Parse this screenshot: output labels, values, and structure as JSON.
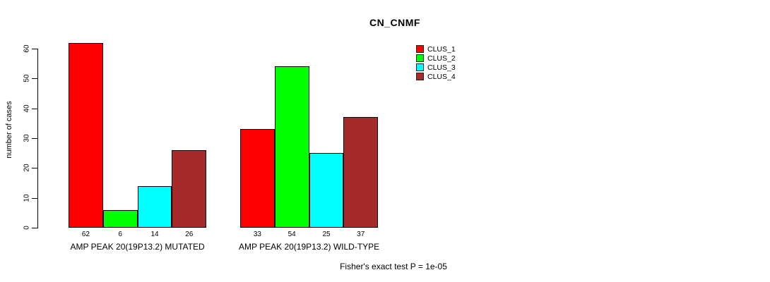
{
  "chart_data": {
    "type": "bar",
    "title": "CN_CNMF",
    "xlabel": "",
    "ylabel": "number of cases",
    "ylim": [
      0,
      65
    ],
    "yticks": [
      0,
      10,
      20,
      30,
      40,
      50,
      60
    ],
    "grid": false,
    "legend_position": "top-right",
    "categories": [
      "AMP PEAK 20(19P13.2) MUTATED",
      "AMP PEAK 20(19P13.2) WILD-TYPE"
    ],
    "series": [
      {
        "name": "CLUS_1",
        "color": "#ff0000",
        "values": [
          62,
          33
        ]
      },
      {
        "name": "CLUS_2",
        "color": "#00ff00",
        "values": [
          6,
          54
        ]
      },
      {
        "name": "CLUS_3",
        "color": "#00ffff",
        "values": [
          14,
          25
        ]
      },
      {
        "name": "CLUS_4",
        "color": "#a52a2a",
        "values": [
          26,
          37
        ]
      }
    ],
    "annotation": "Fisher's exact test P = 1e-05"
  }
}
